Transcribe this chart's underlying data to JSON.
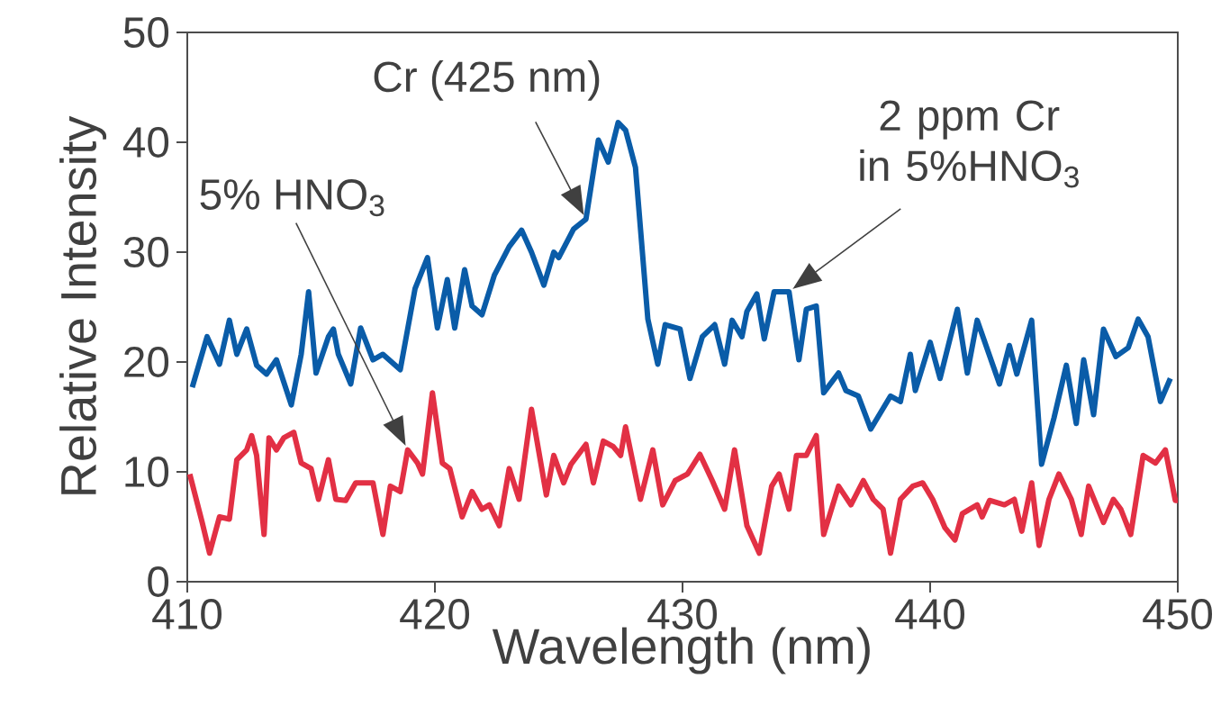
{
  "chart_data": {
    "type": "line",
    "xlabel": "Wavelength (nm)",
    "ylabel": "Relative Intensity",
    "xlim": [
      410,
      450
    ],
    "ylim": [
      0,
      50
    ],
    "xticks": [
      410,
      420,
      430,
      440,
      450
    ],
    "yticks": [
      0,
      10,
      20,
      30,
      40,
      50
    ],
    "grid": false,
    "marker": "none",
    "line_style": "solid",
    "series": [
      {
        "color": "#0a5ca8",
        "x": [
          410.2,
          410.8,
          411.3,
          411.7,
          412.0,
          412.4,
          412.8,
          413.2,
          413.6,
          414.2,
          414.6,
          414.9,
          415.2,
          415.7,
          415.9,
          416.1,
          416.6,
          417.0,
          417.5,
          417.9,
          418.6,
          419.2,
          419.7,
          420.1,
          420.5,
          420.8,
          421.2,
          421.5,
          421.9,
          422.4,
          423.0,
          423.5,
          423.9,
          424.4,
          424.8,
          425.0,
          425.6,
          426.1,
          426.6,
          427.0,
          427.4,
          427.7,
          428.1,
          428.6,
          429.0,
          429.3,
          429.9,
          430.3,
          430.8,
          431.3,
          431.7,
          432.0,
          432.4,
          432.6,
          433.0,
          433.3,
          433.7,
          434.3,
          434.7,
          435.0,
          435.4,
          435.7,
          436.3,
          436.6,
          437.1,
          437.6,
          438.4,
          438.8,
          439.2,
          439.4,
          440.0,
          440.4,
          441.1,
          441.5,
          441.9,
          442.8,
          443.2,
          443.5,
          444.1,
          444.5,
          445.0,
          445.5,
          445.9,
          446.2,
          446.6,
          447.0,
          447.5,
          448.0,
          448.4,
          448.8,
          449.3,
          449.7
        ],
        "values": [
          17.7,
          22.3,
          19.8,
          23.8,
          20.7,
          23.0,
          19.7,
          18.9,
          20.2,
          16.1,
          20.7,
          26.4,
          19.0,
          22.3,
          23.0,
          20.7,
          18.0,
          23.1,
          20.2,
          20.7,
          19.3,
          26.7,
          29.5,
          23.1,
          27.5,
          23.1,
          28.4,
          25.1,
          24.3,
          27.9,
          30.5,
          32.0,
          30.0,
          27.0,
          30.0,
          29.5,
          32.1,
          33.0,
          40.2,
          38.2,
          41.8,
          41.1,
          37.7,
          23.9,
          19.8,
          23.4,
          23.0,
          18.5,
          22.3,
          23.4,
          19.8,
          23.8,
          22.3,
          24.6,
          26.2,
          22.1,
          26.4,
          26.4,
          20.2,
          24.8,
          25.1,
          17.2,
          19.0,
          17.4,
          16.9,
          13.9,
          16.9,
          16.4,
          20.7,
          17.4,
          21.8,
          18.5,
          24.8,
          19.0,
          23.8,
          18.0,
          21.5,
          18.9,
          23.8,
          10.7,
          14.9,
          19.7,
          14.4,
          20.2,
          15.2,
          23.0,
          20.5,
          21.3,
          23.9,
          22.3,
          16.4,
          18.5
        ]
      },
      {
        "name": "5% HNO$_{3}$",
        "color": "#e23044",
        "x": [
          410.1,
          410.6,
          410.9,
          411.3,
          411.7,
          412.0,
          412.4,
          412.6,
          412.8,
          413.1,
          413.3,
          413.6,
          413.9,
          414.3,
          414.6,
          415.0,
          415.3,
          415.7,
          416.0,
          416.4,
          416.8,
          417.5,
          417.9,
          418.2,
          418.6,
          418.9,
          419.3,
          419.5,
          419.9,
          420.3,
          420.6,
          421.1,
          421.5,
          421.9,
          422.2,
          422.6,
          423.0,
          423.4,
          423.9,
          424.5,
          424.8,
          425.2,
          425.5,
          426.1,
          426.4,
          426.8,
          427.2,
          427.5,
          427.7,
          428.3,
          428.8,
          429.2,
          429.7,
          430.2,
          430.7,
          431.2,
          431.7,
          432.1,
          432.6,
          433.1,
          433.6,
          433.9,
          434.3,
          434.6,
          435.0,
          435.4,
          435.7,
          436.3,
          436.8,
          437.3,
          437.7,
          438.1,
          438.4,
          438.8,
          439.3,
          439.7,
          440.1,
          440.6,
          441.0,
          441.3,
          441.9,
          442.1,
          442.4,
          443.0,
          443.4,
          443.7,
          444.1,
          444.4,
          444.8,
          445.2,
          445.7,
          446.1,
          446.4,
          447.0,
          447.4,
          447.7,
          448.1,
          448.6,
          449.1,
          449.5,
          449.9,
          450.0
        ],
        "values": [
          9.8,
          5.4,
          2.6,
          5.9,
          5.7,
          11.1,
          12.0,
          13.3,
          11.5,
          4.3,
          13.1,
          12.0,
          13.1,
          13.6,
          10.8,
          10.3,
          7.5,
          11.1,
          7.5,
          7.4,
          9.0,
          9.0,
          4.3,
          8.7,
          8.2,
          12.0,
          10.8,
          9.8,
          17.2,
          10.8,
          10.3,
          5.9,
          8.2,
          6.6,
          7.0,
          5.1,
          10.3,
          7.5,
          15.7,
          7.9,
          11.5,
          9.0,
          10.7,
          12.5,
          9.0,
          12.8,
          12.3,
          11.5,
          14.1,
          7.5,
          12.0,
          7.0,
          9.2,
          9.8,
          11.6,
          9.2,
          6.6,
          12.0,
          5.1,
          2.6,
          8.7,
          9.8,
          6.6,
          11.5,
          11.5,
          13.3,
          4.3,
          8.7,
          7.0,
          9.2,
          7.5,
          6.6,
          2.6,
          7.5,
          8.7,
          9.0,
          7.5,
          4.9,
          3.8,
          6.2,
          7.0,
          5.9,
          7.4,
          7.0,
          7.5,
          4.6,
          9.0,
          3.3,
          7.5,
          9.8,
          7.5,
          4.3,
          8.7,
          5.4,
          7.5,
          6.6,
          4.3,
          11.5,
          10.8,
          12.0,
          7.4,
          7.4
        ]
      }
    ],
    "annotations": [
      {
        "text": "Cr (425 nm)",
        "x": 426.1,
        "y": 33.0
      },
      {
        "text": "2 ppm Cr in 5%HNO$_{3}$",
        "x": 434.3,
        "y": 26.4
      }
    ]
  }
}
